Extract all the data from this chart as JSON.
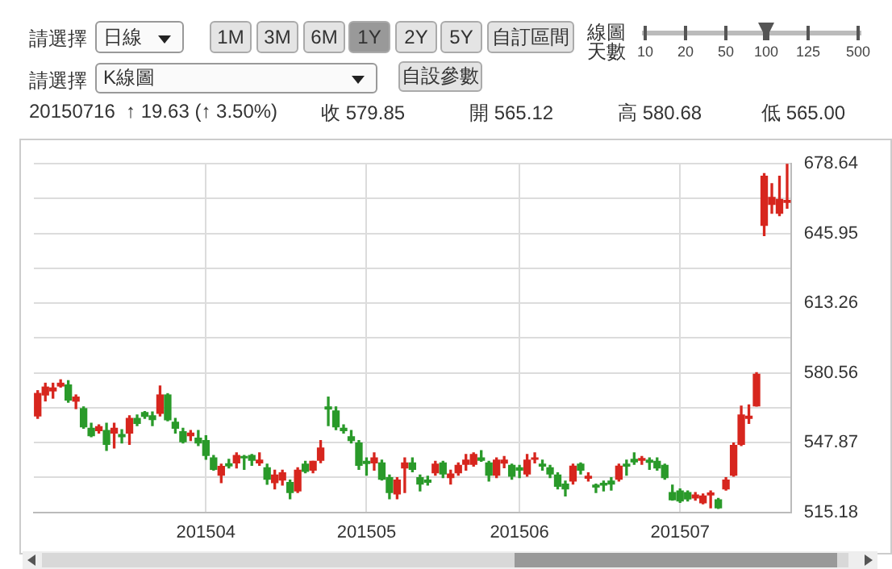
{
  "chart_data": {
    "type": "candlestick",
    "categories": [
      null,
      null,
      null,
      null,
      null,
      null,
      null,
      null,
      null,
      null,
      null,
      null,
      null,
      null,
      null,
      null,
      null,
      null,
      null,
      null,
      null,
      null,
      "201504",
      null,
      null,
      null,
      null,
      null,
      null,
      null,
      null,
      null,
      null,
      null,
      null,
      null,
      null,
      null,
      null,
      null,
      null,
      null,
      null,
      "201505",
      null,
      null,
      null,
      null,
      null,
      null,
      null,
      null,
      null,
      null,
      null,
      null,
      null,
      null,
      null,
      null,
      null,
      null,
      null,
      "201506",
      null,
      null,
      null,
      null,
      null,
      null,
      null,
      null,
      null,
      null,
      null,
      null,
      null,
      null,
      null,
      null,
      null,
      null,
      null,
      null,
      "201507",
      null,
      null,
      null,
      null,
      null,
      null,
      null,
      null,
      null,
      null,
      null,
      null,
      null,
      null
    ],
    "ohlc": [
      [
        560.4,
        572.2,
        559.2,
        570.9
      ],
      [
        570.2,
        575.7,
        567.4,
        573.9
      ],
      [
        572.1,
        575.7,
        568.7,
        573.5
      ],
      [
        574.4,
        577.3,
        573.9,
        575.7
      ],
      [
        574.9,
        576.9,
        566.8,
        567.8
      ],
      [
        567.3,
        570.2,
        563.8,
        569.2
      ],
      [
        563.8,
        564.6,
        554.6,
        555.3
      ],
      [
        554.6,
        556.9,
        550.6,
        551.1
      ],
      [
        553.5,
        556.2,
        552.3,
        555.3
      ],
      [
        553.5,
        556.9,
        544.2,
        547.0
      ],
      [
        552.3,
        556.9,
        545.3,
        554.6
      ],
      [
        551.6,
        553.9,
        547.7,
        550.6
      ],
      [
        552.3,
        560.4,
        547.0,
        559.2
      ],
      [
        559.2,
        560.8,
        555.8,
        556.9
      ],
      [
        561.9,
        562.4,
        559.2,
        560.2
      ],
      [
        560.4,
        562.2,
        555.8,
        558.7
      ],
      [
        561.6,
        574.4,
        560.4,
        570.2
      ],
      [
        570.2,
        570.8,
        558.1,
        558.6
      ],
      [
        557.4,
        559.2,
        552.3,
        554.6
      ],
      [
        553.0,
        554.6,
        547.7,
        548.3
      ],
      [
        551.1,
        553.5,
        548.8,
        552.3
      ],
      [
        549.9,
        553.5,
        546.5,
        547.7
      ],
      [
        548.8,
        551.1,
        540.0,
        541.8
      ],
      [
        540.7,
        541.8,
        534.9,
        535.3
      ],
      [
        532.6,
        537.7,
        529.1,
        536.7
      ],
      [
        537.9,
        540.0,
        536.0,
        536.9
      ],
      [
        538.3,
        543.0,
        536.0,
        541.8
      ],
      [
        541.3,
        541.8,
        535.3,
        540.7
      ],
      [
        541.8,
        542.3,
        537.2,
        539.6
      ],
      [
        538.3,
        543.0,
        537.2,
        539.6
      ],
      [
        536.0,
        537.7,
        528.3,
        530.7
      ],
      [
        529.1,
        534.9,
        526.1,
        532.6
      ],
      [
        530.3,
        534.9,
        527.9,
        533.7
      ],
      [
        529.1,
        530.3,
        521.5,
        524.4
      ],
      [
        525.2,
        536.0,
        524.4,
        534.9
      ],
      [
        537.7,
        539.1,
        533.7,
        534.4
      ],
      [
        534.9,
        539.1,
        533.7,
        539.1
      ],
      [
        539.6,
        548.8,
        538.4,
        545.3
      ],
      [
        564.6,
        569.2,
        555.8,
        563.6
      ],
      [
        562.7,
        564.6,
        553.9,
        555.3
      ],
      [
        554.6,
        556.2,
        552.3,
        553.5
      ],
      [
        550.6,
        553.5,
        547.7,
        548.8
      ],
      [
        547.7,
        548.8,
        535.3,
        537.2
      ],
      [
        539.1,
        540.7,
        532.6,
        538.1
      ],
      [
        538.3,
        543.0,
        534.9,
        540.7
      ],
      [
        538.3,
        539.6,
        530.3,
        530.7
      ],
      [
        531.4,
        532.6,
        521.5,
        524.4
      ],
      [
        523.8,
        531.4,
        521.5,
        530.3
      ],
      [
        536.0,
        540.7,
        524.4,
        538.3
      ],
      [
        538.3,
        540.7,
        534.2,
        535.3
      ],
      [
        531.4,
        532.6,
        525.2,
        528.4
      ],
      [
        530.3,
        532.1,
        527.9,
        529.3
      ],
      [
        533.7,
        539.1,
        532.6,
        537.7
      ],
      [
        538.3,
        539.1,
        531.4,
        533.1
      ],
      [
        531.4,
        534.9,
        528.4,
        533.1
      ],
      [
        533.7,
        538.3,
        532.6,
        537.2
      ],
      [
        537.7,
        542.3,
        534.9,
        539.6
      ],
      [
        537.7,
        543.0,
        536.8,
        542.3
      ],
      [
        540.7,
        544.1,
        539.1,
        539.6
      ],
      [
        538.3,
        539.1,
        529.8,
        532.6
      ],
      [
        532.6,
        540.7,
        531.4,
        539.6
      ],
      [
        538.2,
        541.3,
        536.1,
        539.6
      ],
      [
        537.2,
        537.7,
        530.7,
        532.1
      ],
      [
        536.0,
        537.2,
        531.4,
        534.9
      ],
      [
        533.1,
        542.3,
        532.1,
        539.6
      ],
      [
        540.0,
        543.0,
        538.3,
        540.7
      ],
      [
        537.7,
        539.6,
        534.9,
        536.8
      ],
      [
        536.0,
        537.2,
        531.4,
        533.1
      ],
      [
        532.6,
        533.7,
        526.1,
        527.4
      ],
      [
        528.4,
        529.8,
        522.8,
        526.1
      ],
      [
        529.8,
        537.7,
        528.4,
        536.8
      ],
      [
        537.7,
        538.3,
        533.1,
        534.9
      ],
      [
        531.2,
        533.7,
        529.8,
        532.1
      ],
      [
        527.9,
        528.4,
        524.4,
        527.0
      ],
      [
        528.8,
        529.8,
        525.2,
        527.9
      ],
      [
        529.8,
        531.4,
        525.6,
        528.4
      ],
      [
        530.7,
        537.7,
        529.8,
        536.8
      ],
      [
        537.7,
        539.6,
        532.6,
        536.8
      ],
      [
        540.0,
        543.0,
        537.7,
        538.8
      ],
      [
        539.6,
        541.3,
        537.7,
        540.4
      ],
      [
        539.6,
        540.7,
        535.3,
        538.6
      ],
      [
        539.1,
        540.7,
        534.9,
        536.0
      ],
      [
        537.2,
        537.7,
        530.7,
        531.4
      ],
      [
        524.4,
        527.9,
        520.9,
        521.0
      ],
      [
        525.2,
        526.1,
        519.8,
        520.5
      ],
      [
        524.4,
        525.2,
        520.5,
        521.4
      ],
      [
        521.9,
        524.4,
        520.9,
        523.3
      ],
      [
        519.6,
        523.8,
        519.2,
        522.8
      ],
      [
        523.3,
        525.2,
        517.3,
        524.2
      ],
      [
        521.0,
        521.7,
        517.0,
        517.3
      ],
      [
        526.1,
        531.4,
        525.6,
        530.3
      ],
      [
        532.6,
        547.7,
        532.1,
        546.5
      ],
      [
        547.0,
        565.0,
        546.5,
        560.8
      ],
      [
        559.2,
        565.5,
        556.9,
        560.22
      ],
      [
        565.12,
        580.68,
        565.0,
        579.85
      ],
      [
        649.8,
        674.0,
        644.9,
        672.8
      ],
      [
        659.6,
        669.3,
        655.4,
        662.9
      ],
      [
        655.4,
        672.8,
        654.3,
        661.9
      ],
      [
        660.5,
        678.6,
        657.8,
        661.5
      ]
    ],
    "ylim": [
      515.18,
      678.64
    ],
    "yticks": [
      515.18,
      {
        "value": 531.53,
        "label": null
      },
      547.87,
      {
        "value": 564.22,
        "label": null
      },
      580.56,
      {
        "value": 596.91,
        "label": null
      },
      613.26,
      {
        "value": 629.61,
        "label": null
      },
      645.95,
      {
        "value": 662.3,
        "label": null
      },
      678.64
    ],
    "grid": true,
    "annotations": [
      "請選擇",
      "日線",
      "1M",
      "3M",
      "6M",
      "1Y",
      "2Y",
      "5Y",
      "自訂區間",
      "線圖天數",
      "10",
      "20",
      "50",
      "100",
      "125",
      "500",
      "請選擇",
      "K線圖",
      "自設參數",
      "20150716",
      "↑ 19.63 (↑ 3.50%)",
      "收 579.85",
      "開 565.12",
      "高 580.68",
      "低 565.00"
    ]
  }
}
